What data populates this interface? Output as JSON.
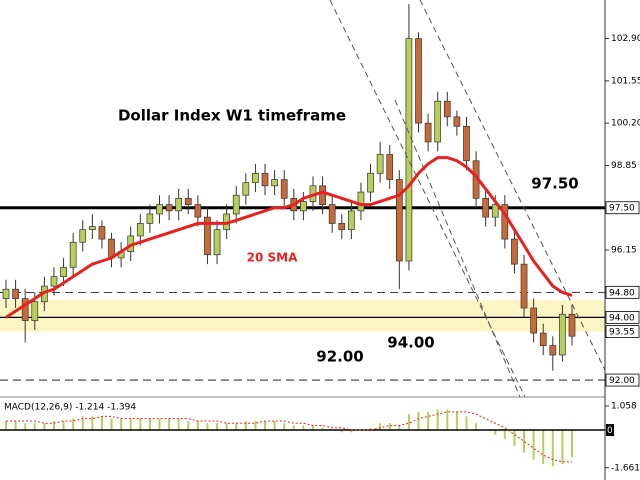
{
  "chart_data": {
    "type": "candlestick",
    "title": "Dollar Index W1 timeframe",
    "ylim": [
      91.46,
      104.13
    ],
    "yticks": [
      {
        "value": 102.9,
        "label": "102.90"
      },
      101.55,
      {
        "value": 100.2,
        "label": "100.20"
      },
      98.85,
      96.15
    ],
    "levels": [
      {
        "value": 97.5,
        "label": "97.50",
        "style": "thick"
      },
      {
        "value": 94.8,
        "label": "94.80",
        "style": "dashed"
      },
      {
        "value": 94.0,
        "label": "94.00",
        "style": "solid"
      },
      {
        "value": 93.55,
        "label": "93.55",
        "style": "none"
      },
      {
        "value": 92.0,
        "label": "92.00",
        "style": "dashed"
      }
    ],
    "zone": [
      93.55,
      94.55
    ],
    "zone_color": "#fbf5c4",
    "up_color": "#b5cf5a",
    "down_color": "#c8693a",
    "annotations": [
      {
        "text": "97.50",
        "color": "#000000"
      },
      {
        "text": "20 SMA",
        "color": "#e82020"
      },
      {
        "text": "94.00",
        "color": "#000000"
      },
      {
        "text": "92.00",
        "color": "#000000"
      }
    ],
    "open": [
      94.6,
      94.9,
      94.6,
      93.9,
      94.5,
      95.0,
      95.3,
      95.6,
      96.4,
      96.8,
      96.9,
      96.5,
      95.9,
      96.1,
      96.6,
      97.0,
      97.3,
      97.6,
      97.4,
      97.8,
      97.6,
      97.2,
      96.0,
      96.8,
      97.3,
      97.9,
      98.3,
      98.6,
      98.2,
      98.4,
      97.8,
      97.4,
      97.7,
      98.2,
      97.6,
      97.0,
      96.8,
      97.4,
      98.0,
      98.6,
      99.2,
      98.4,
      95.8,
      102.9,
      100.2,
      99.6,
      100.9,
      100.4,
      100.1,
      99.0,
      97.8,
      97.2,
      97.6,
      96.5,
      95.7,
      94.3,
      93.5,
      93.1,
      92.8,
      94.1
    ],
    "high": [
      95.2,
      95.2,
      94.9,
      94.8,
      95.3,
      95.6,
      95.9,
      96.7,
      97.1,
      97.3,
      97.1,
      96.7,
      96.4,
      96.9,
      97.3,
      97.6,
      97.9,
      97.9,
      98.1,
      98.1,
      97.9,
      97.5,
      97.1,
      97.6,
      98.2,
      98.6,
      98.9,
      98.9,
      98.7,
      98.7,
      98.1,
      98.0,
      98.5,
      98.5,
      97.9,
      97.3,
      97.7,
      98.3,
      98.9,
      99.6,
      99.5,
      98.7,
      104.0,
      103.1,
      100.5,
      101.2,
      101.2,
      100.6,
      100.4,
      99.3,
      98.1,
      97.9,
      97.9,
      96.8,
      96.0,
      94.6,
      93.8,
      93.4,
      94.4,
      94.4
    ],
    "low": [
      94.3,
      94.3,
      93.2,
      93.6,
      94.2,
      94.7,
      95.0,
      95.3,
      96.1,
      96.5,
      96.2,
      95.6,
      95.6,
      95.8,
      96.3,
      96.7,
      97.0,
      97.1,
      97.1,
      97.3,
      96.9,
      95.7,
      95.7,
      96.5,
      97.0,
      97.6,
      98.0,
      97.9,
      97.9,
      97.5,
      97.1,
      97.1,
      97.4,
      97.3,
      96.7,
      96.5,
      96.5,
      97.1,
      97.7,
      98.3,
      98.1,
      94.9,
      95.5,
      99.9,
      99.3,
      99.3,
      100.1,
      99.8,
      98.7,
      97.5,
      96.9,
      96.9,
      96.2,
      95.4,
      94.0,
      93.2,
      92.8,
      92.3,
      92.6,
      93.1
    ],
    "close": [
      94.9,
      94.6,
      93.9,
      94.5,
      95.0,
      95.3,
      95.6,
      96.4,
      96.8,
      96.9,
      96.5,
      95.9,
      96.1,
      96.6,
      97.0,
      97.3,
      97.6,
      97.4,
      97.8,
      97.6,
      97.2,
      96.0,
      96.8,
      97.3,
      97.9,
      98.3,
      98.6,
      98.2,
      98.4,
      97.8,
      97.4,
      97.7,
      98.2,
      97.6,
      97.0,
      96.8,
      97.4,
      98.0,
      98.6,
      99.2,
      98.4,
      95.8,
      102.9,
      100.2,
      99.6,
      100.9,
      100.4,
      100.1,
      99.0,
      97.8,
      97.2,
      97.6,
      96.5,
      95.7,
      94.3,
      93.5,
      93.1,
      92.8,
      94.1,
      93.4
    ],
    "sma": {
      "color": "#e82020",
      "values": [
        94.0,
        94.2,
        94.4,
        94.6,
        94.8,
        94.9,
        95.1,
        95.3,
        95.5,
        95.7,
        95.8,
        95.9,
        96.1,
        96.3,
        96.4,
        96.5,
        96.6,
        96.7,
        96.8,
        96.9,
        97.0,
        97.0,
        97.0,
        97.0,
        97.1,
        97.2,
        97.3,
        97.4,
        97.5,
        97.5,
        97.6,
        97.8,
        97.9,
        98.0,
        97.9,
        97.8,
        97.7,
        97.6,
        97.6,
        97.7,
        97.8,
        97.9,
        98.2,
        98.6,
        98.9,
        99.1,
        99.1,
        99.0,
        98.8,
        98.5,
        98.1,
        97.7,
        97.3,
        96.8,
        96.3,
        95.8,
        95.4,
        95.0,
        94.8,
        94.7
      ]
    },
    "macd": {
      "label": "MACD(12,26,9) -1.214 -1.394",
      "ylim": [
        -2.2,
        1.41
      ],
      "yticks": [
        1.058,
        0,
        -1.661
      ],
      "hist_color": "#b5cf5a",
      "signal_color": "#e82020",
      "hist": [
        0.4,
        0.4,
        0.3,
        0.3,
        0.3,
        0.4,
        0.4,
        0.5,
        0.6,
        0.6,
        0.6,
        0.5,
        0.5,
        0.5,
        0.5,
        0.5,
        0.5,
        0.5,
        0.5,
        0.4,
        0.4,
        0.3,
        0.3,
        0.3,
        0.3,
        0.4,
        0.4,
        0.4,
        0.4,
        0.3,
        0.2,
        0.2,
        0.2,
        0.1,
        0.0,
        -0.1,
        -0.1,
        0.0,
        0.1,
        0.3,
        0.3,
        0.2,
        0.7,
        0.8,
        0.8,
        0.9,
        0.9,
        0.8,
        0.6,
        0.3,
        0.0,
        -0.2,
        -0.4,
        -0.7,
        -1.0,
        -1.3,
        -1.5,
        -1.6,
        -1.5,
        -1.2
      ],
      "signal": [
        0.4,
        0.4,
        0.4,
        0.4,
        0.3,
        0.3,
        0.4,
        0.4,
        0.5,
        0.5,
        0.6,
        0.6,
        0.5,
        0.5,
        0.5,
        0.5,
        0.5,
        0.5,
        0.5,
        0.5,
        0.4,
        0.4,
        0.4,
        0.3,
        0.3,
        0.3,
        0.3,
        0.4,
        0.4,
        0.4,
        0.3,
        0.3,
        0.2,
        0.2,
        0.1,
        0.1,
        0.0,
        0.0,
        0.0,
        0.1,
        0.2,
        0.2,
        0.3,
        0.5,
        0.6,
        0.7,
        0.8,
        0.8,
        0.8,
        0.7,
        0.5,
        0.3,
        0.1,
        -0.2,
        -0.5,
        -0.8,
        -1.1,
        -1.3,
        -1.4,
        -1.4
      ]
    }
  }
}
